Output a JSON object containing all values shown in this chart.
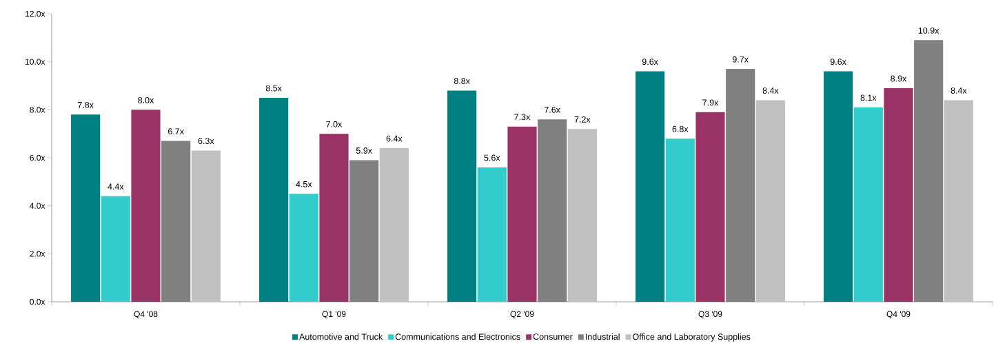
{
  "chart_data": {
    "type": "bar",
    "categories": [
      "Q4 '08",
      "Q1 '09",
      "Q2 '09",
      "Q3 '09",
      "Q4 '09"
    ],
    "series": [
      {
        "name": "Automotive and Truck",
        "color": "#008080",
        "values": [
          7.8,
          8.5,
          8.8,
          9.6,
          9.6
        ],
        "value_labels": [
          "7.8x",
          "8.5x",
          "8.8x",
          "9.6x",
          "9.6x"
        ]
      },
      {
        "name": "Communications and Electronics",
        "color": "#33cccc",
        "values": [
          4.4,
          4.5,
          5.6,
          6.8,
          8.1
        ],
        "value_labels": [
          "4.4x",
          "4.5x",
          "5.6x",
          "6.8x",
          "8.1x"
        ]
      },
      {
        "name": "Consumer",
        "color": "#993366",
        "values": [
          8.0,
          7.0,
          7.3,
          7.9,
          8.9
        ],
        "value_labels": [
          "8.0x",
          "7.0x",
          "7.3x",
          "7.9x",
          "8.9x"
        ]
      },
      {
        "name": "Industrial",
        "color": "#808080",
        "values": [
          6.7,
          5.9,
          7.6,
          9.7,
          10.9
        ],
        "value_labels": [
          "6.7x",
          "5.9x",
          "7.6x",
          "9.7x",
          "10.9x"
        ]
      },
      {
        "name": "Office and Laboratory Supplies",
        "color": "#c0c0c0",
        "values": [
          6.3,
          6.4,
          7.2,
          8.4,
          8.4
        ],
        "value_labels": [
          "6.3x",
          "6.4x",
          "7.2x",
          "8.4x",
          "8.4x"
        ]
      }
    ],
    "ylim": [
      0,
      12
    ],
    "yticks": [
      {
        "value": 0,
        "label": "0.0x"
      },
      {
        "value": 2,
        "label": "2.0x"
      },
      {
        "value": 4,
        "label": "4.0x"
      },
      {
        "value": 6,
        "label": "6.0x"
      },
      {
        "value": 8,
        "label": "8.0x"
      },
      {
        "value": 10,
        "label": "10.0x"
      },
      {
        "value": 12,
        "label": "12.0x"
      }
    ],
    "grid": false,
    "legend": "bottom"
  }
}
